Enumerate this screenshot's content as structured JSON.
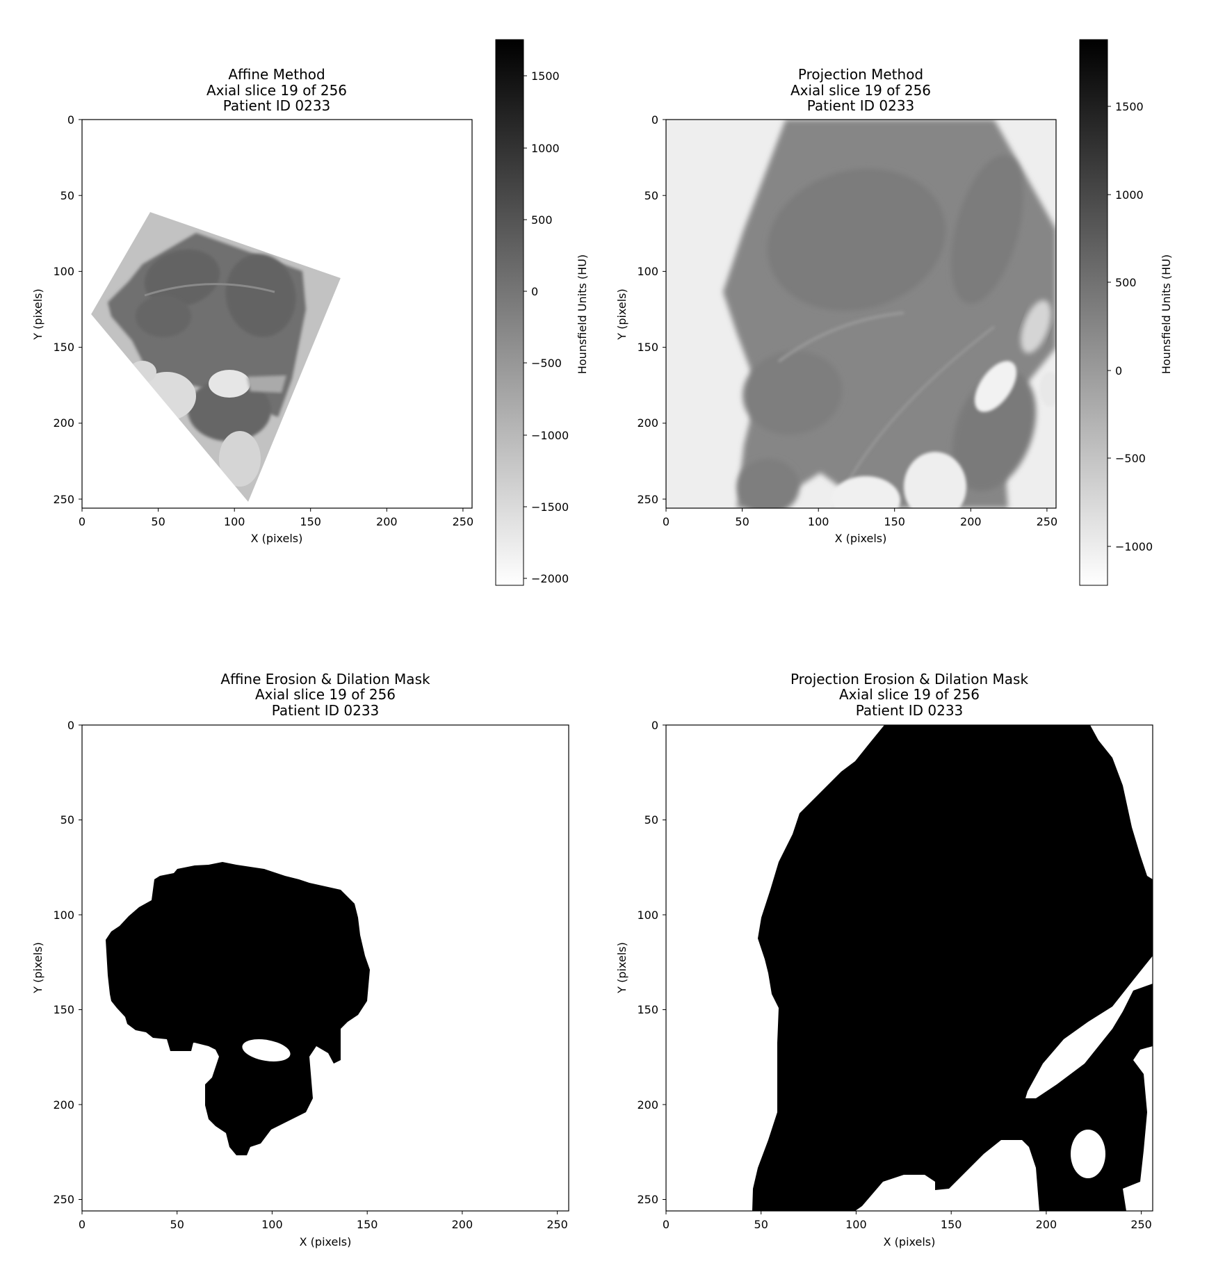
{
  "chart_data": [
    {
      "type": "heatmap",
      "panel": "affine-method",
      "title": [
        "Affine Method",
        "Axial slice 19 of 256",
        "Patient ID 0233"
      ],
      "xlabel": "X (pixels)",
      "ylabel": "Y (pixels)",
      "xlim": [
        0,
        256
      ],
      "ylim": [
        256,
        0
      ],
      "xticks": [
        "0",
        "50",
        "100",
        "150",
        "200",
        "250"
      ],
      "yticks": [
        "0",
        "50",
        "100",
        "150",
        "200",
        "250"
      ],
      "colormap": "gray_r",
      "colorbar": {
        "label": "Hounsfield Units (HU)",
        "range": [
          -2100,
          1750
        ],
        "ticks": [
          "1500",
          "1000",
          "500",
          "0",
          "−500",
          "−1000",
          "−1500",
          "−2000"
        ]
      }
    },
    {
      "type": "heatmap",
      "panel": "projection-method",
      "title": [
        "Projection Method",
        "Axial slice 19 of 256",
        "Patient ID 0233"
      ],
      "xlabel": "X (pixels)",
      "ylabel": "Y (pixels)",
      "xlim": [
        0,
        256
      ],
      "ylim": [
        256,
        0
      ],
      "xticks": [
        "0",
        "50",
        "100",
        "150",
        "200",
        "250"
      ],
      "yticks": [
        "0",
        "50",
        "100",
        "150",
        "200",
        "250"
      ],
      "colormap": "gray_r",
      "colorbar": {
        "label": "Hounsfield Units (HU)",
        "range": [
          -1250,
          1900
        ],
        "ticks": [
          "1500",
          "1000",
          "500",
          "0",
          "−500",
          "−1000"
        ]
      }
    },
    {
      "type": "heatmap",
      "panel": "affine-mask",
      "title": [
        "Affine Erosion & Dilation Mask",
        "Axial slice 19 of 256",
        "Patient ID 0233"
      ],
      "xlabel": "X (pixels)",
      "ylabel": "Y (pixels)",
      "xlim": [
        0,
        256
      ],
      "ylim": [
        256,
        0
      ],
      "xticks": [
        "0",
        "50",
        "100",
        "150",
        "200",
        "250"
      ],
      "yticks": [
        "0",
        "50",
        "100",
        "150",
        "200",
        "250"
      ],
      "colormap": "binary"
    },
    {
      "type": "heatmap",
      "panel": "projection-mask",
      "title": [
        "Projection Erosion & Dilation Mask",
        "Axial slice 19 of 256",
        "Patient ID 0233"
      ],
      "xlabel": "X (pixels)",
      "ylabel": "Y (pixels)",
      "xlim": [
        0,
        256
      ],
      "ylim": [
        256,
        0
      ],
      "xticks": [
        "0",
        "50",
        "100",
        "150",
        "200",
        "250"
      ],
      "yticks": [
        "0",
        "50",
        "100",
        "150",
        "200",
        "250"
      ],
      "colormap": "binary"
    }
  ]
}
